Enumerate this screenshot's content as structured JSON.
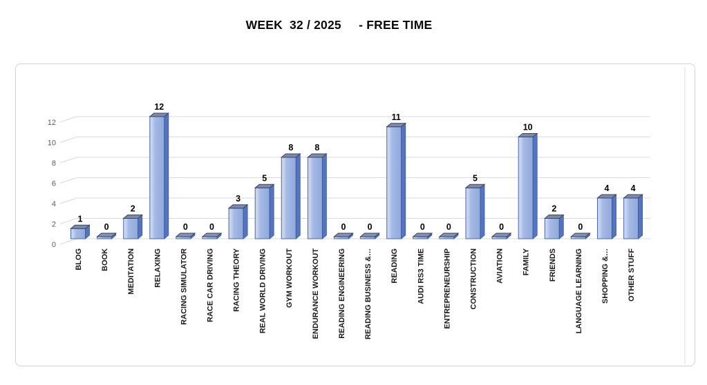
{
  "title": "WEEK  32 / 2025     - FREE TIME",
  "chart_data": {
    "type": "bar",
    "style": "3d-column",
    "title": "WEEK  32 / 2025     - FREE TIME",
    "categories": [
      "BLOG",
      "BOOK",
      "MEDITATION",
      "RELAXING",
      "RACING SIMULATOR",
      "RACE CAR DRIVING",
      "RACING THEORY",
      "REAL WORLD DRIVING",
      "GYM WORKOUT",
      "ENDURANCE WORKOUT",
      "READING ENGINEERING",
      "READING BUSINESS &…",
      "READING",
      "AUDI RS3 TIME",
      "ENTREPRENEURSHIP",
      "CONSTRUCTION",
      "AVIATION",
      "FAMILY",
      "FRIENDS",
      "LANGUAGE LEARNING",
      "SHOPPING &…",
      "OTHER STUFF"
    ],
    "values": [
      1,
      0,
      2,
      12,
      0,
      0,
      3,
      5,
      8,
      8,
      0,
      0,
      11,
      0,
      0,
      5,
      0,
      10,
      2,
      0,
      4,
      4
    ],
    "xlabel": "",
    "ylabel": "",
    "ylim": [
      0,
      12
    ],
    "yticks": [
      0,
      2,
      4,
      6,
      8,
      10,
      12
    ],
    "grid": true,
    "data_labels": true,
    "legend": "none",
    "colors": {
      "bar_front_light": "#C9D5F0",
      "bar_front": "#A5BAE5",
      "bar_front_dark": "#8FA9DC",
      "bar_outline": "#4569B0",
      "bar_side": "#5474C2",
      "bar_side_outline": "#3A5699",
      "bar_top": "#7E8AA9",
      "bar_top_zero": "#8591AF",
      "bar_top_outline": "#31436B",
      "gridline": "#D9D9D9",
      "wall_edge": "#E7E7E7",
      "axis_text": "#595959",
      "value_label_text": "#000000",
      "category_text": "#1A1A1A",
      "chart_border": "#D2D2D2",
      "title_text": "#0B0B0B"
    }
  }
}
